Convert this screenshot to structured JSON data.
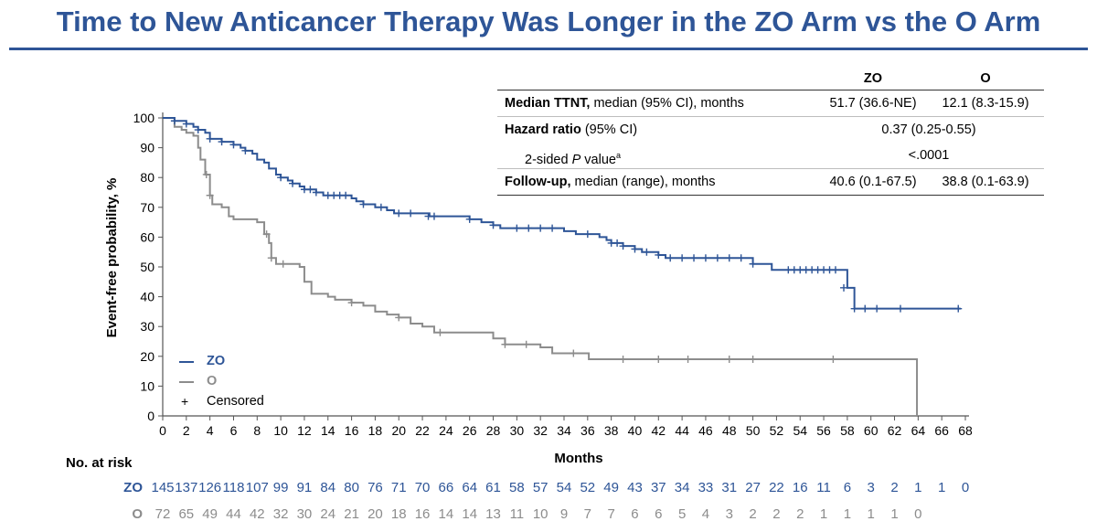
{
  "title": "Time to New Anticancer Therapy Was Longer in the ZO Arm vs the O Arm",
  "colors": {
    "zo": "#2e5597",
    "o": "#8c8c8c",
    "title": "#2e5597"
  },
  "table": {
    "col_zo": "ZO",
    "col_o": "O",
    "rows": [
      {
        "bold": "Median TTNT,",
        "rest": " median (95% CI), months",
        "zo": "51.7 (36.6-NE)",
        "o": "12.1 (8.3-15.9)"
      },
      {
        "bold": "Hazard ratio",
        "rest": " (95% CI)",
        "value": "0.37 (0.25-0.55)"
      },
      {
        "pre": "2-sided ",
        "italic": "P",
        "post": " value",
        "sup": "a",
        "value": "<.0001"
      },
      {
        "bold": "Follow-up,",
        "rest": " median (range), months",
        "zo": "40.6 (0.1-67.5)",
        "o": "38.8 (0.1-63.9)"
      }
    ]
  },
  "legend": {
    "zo": "ZO",
    "o": "O",
    "censored": "Censored",
    "censored_symbol": "+"
  },
  "risk": {
    "title": "No. at risk",
    "zo_label": "ZO",
    "o_label": "O",
    "zo": [
      "145",
      "137",
      "126",
      "118",
      "107",
      "99",
      "91",
      "84",
      "80",
      "76",
      "71",
      "70",
      "66",
      "64",
      "61",
      "58",
      "57",
      "54",
      "52",
      "49",
      "43",
      "37",
      "34",
      "33",
      "31",
      "27",
      "22",
      "16",
      "11",
      "6",
      "3",
      "2",
      "1",
      "1",
      "0"
    ],
    "o": [
      "72",
      "65",
      "49",
      "44",
      "42",
      "32",
      "30",
      "24",
      "21",
      "20",
      "18",
      "16",
      "14",
      "14",
      "13",
      "11",
      "10",
      "9",
      "7",
      "7",
      "6",
      "6",
      "5",
      "4",
      "3",
      "2",
      "2",
      "2",
      "1",
      "1",
      "1",
      "1",
      "0"
    ]
  },
  "chart_data": {
    "type": "line",
    "title": "",
    "xlabel": "Months",
    "ylabel": "Event-free probability, %",
    "xlim": [
      0,
      68
    ],
    "ylim": [
      0,
      100
    ],
    "xticks": [
      "0",
      "2",
      "4",
      "6",
      "8",
      "10",
      "12",
      "14",
      "16",
      "18",
      "20",
      "22",
      "24",
      "26",
      "28",
      "30",
      "32",
      "34",
      "36",
      "38",
      "40",
      "42",
      "44",
      "46",
      "48",
      "50",
      "52",
      "54",
      "56",
      "58",
      "60",
      "62",
      "64",
      "66",
      "68"
    ],
    "yticks": [
      "0",
      "10",
      "20",
      "30",
      "40",
      "50",
      "60",
      "70",
      "80",
      "90",
      "100"
    ],
    "series": [
      {
        "name": "ZO",
        "step": [
          [
            0,
            100
          ],
          [
            1,
            99
          ],
          [
            2,
            98
          ],
          [
            2.6,
            97
          ],
          [
            3,
            96
          ],
          [
            3.6,
            95
          ],
          [
            4,
            93
          ],
          [
            5,
            92
          ],
          [
            6,
            91
          ],
          [
            6.6,
            90
          ],
          [
            7,
            89
          ],
          [
            7.6,
            88
          ],
          [
            8,
            86
          ],
          [
            8.6,
            85
          ],
          [
            9,
            83
          ],
          [
            9.6,
            81
          ],
          [
            10,
            80
          ],
          [
            10.6,
            79
          ],
          [
            11,
            78
          ],
          [
            11.6,
            77
          ],
          [
            12,
            76
          ],
          [
            13,
            75
          ],
          [
            13.6,
            74
          ],
          [
            16,
            73
          ],
          [
            16.4,
            72
          ],
          [
            17,
            71
          ],
          [
            18,
            70
          ],
          [
            19,
            69
          ],
          [
            19.6,
            68
          ],
          [
            22,
            68
          ],
          [
            22.6,
            67
          ],
          [
            25,
            67
          ],
          [
            26,
            66
          ],
          [
            27,
            65
          ],
          [
            28,
            64
          ],
          [
            28.6,
            63
          ],
          [
            30,
            63
          ],
          [
            34,
            62
          ],
          [
            35,
            61
          ],
          [
            37,
            60
          ],
          [
            37.6,
            59
          ],
          [
            38,
            58
          ],
          [
            39,
            57
          ],
          [
            40,
            56
          ],
          [
            40.6,
            55
          ],
          [
            42,
            54
          ],
          [
            42.6,
            53
          ],
          [
            50,
            51
          ],
          [
            51.6,
            49
          ],
          [
            57.6,
            49
          ],
          [
            58,
            43
          ],
          [
            58.6,
            36
          ],
          [
            67.6,
            36
          ]
        ],
        "censored": [
          [
            1,
            99
          ],
          [
            2,
            98
          ],
          [
            3,
            96
          ],
          [
            4,
            93
          ],
          [
            5,
            92
          ],
          [
            6,
            91
          ],
          [
            7,
            89
          ],
          [
            10,
            80
          ],
          [
            11,
            78
          ],
          [
            12,
            76
          ],
          [
            12.5,
            76
          ],
          [
            13,
            75
          ],
          [
            14,
            74
          ],
          [
            14.5,
            74
          ],
          [
            15,
            74
          ],
          [
            15.5,
            74
          ],
          [
            17,
            71
          ],
          [
            18.5,
            70
          ],
          [
            20,
            68
          ],
          [
            21,
            68
          ],
          [
            22.5,
            67
          ],
          [
            23,
            67
          ],
          [
            26,
            66
          ],
          [
            28,
            64
          ],
          [
            30,
            63
          ],
          [
            31,
            63
          ],
          [
            32,
            63
          ],
          [
            33,
            63
          ],
          [
            36,
            61
          ],
          [
            38,
            58
          ],
          [
            38.5,
            58
          ],
          [
            39,
            57
          ],
          [
            40,
            56
          ],
          [
            41,
            55
          ],
          [
            42,
            54
          ],
          [
            43,
            53
          ],
          [
            44,
            53
          ],
          [
            45,
            53
          ],
          [
            46,
            53
          ],
          [
            47,
            53
          ],
          [
            48,
            53
          ],
          [
            49,
            53
          ],
          [
            50,
            51
          ],
          [
            53,
            49
          ],
          [
            53.5,
            49
          ],
          [
            54,
            49
          ],
          [
            54.5,
            49
          ],
          [
            55,
            49
          ],
          [
            55.5,
            49
          ],
          [
            56,
            49
          ],
          [
            56.5,
            49
          ],
          [
            57,
            49
          ],
          [
            57.7,
            43
          ],
          [
            58.6,
            36
          ],
          [
            59.5,
            36
          ],
          [
            60.5,
            36
          ],
          [
            62.5,
            36
          ],
          [
            67.4,
            36
          ]
        ]
      },
      {
        "name": "O",
        "step": [
          [
            0,
            100
          ],
          [
            1,
            97
          ],
          [
            1.6,
            96
          ],
          [
            2,
            95
          ],
          [
            2.6,
            94
          ],
          [
            3,
            90
          ],
          [
            3.2,
            86
          ],
          [
            3.6,
            81
          ],
          [
            4,
            74
          ],
          [
            4.2,
            71
          ],
          [
            5,
            70
          ],
          [
            5.6,
            67
          ],
          [
            6,
            66
          ],
          [
            8,
            65
          ],
          [
            8.6,
            61
          ],
          [
            9,
            58
          ],
          [
            9.2,
            53
          ],
          [
            9.6,
            51
          ],
          [
            11,
            51
          ],
          [
            11.6,
            50
          ],
          [
            12,
            45
          ],
          [
            12.6,
            41
          ],
          [
            14,
            40
          ],
          [
            14.6,
            39
          ],
          [
            16,
            38
          ],
          [
            17,
            37
          ],
          [
            18,
            35
          ],
          [
            19,
            34
          ],
          [
            20,
            33
          ],
          [
            21,
            31
          ],
          [
            22,
            30
          ],
          [
            23,
            28
          ],
          [
            27,
            28
          ],
          [
            28,
            26
          ],
          [
            29,
            24
          ],
          [
            32,
            23
          ],
          [
            33,
            21
          ],
          [
            36,
            21
          ],
          [
            36.1,
            19
          ],
          [
            63.9,
            19
          ],
          [
            63.9,
            0
          ]
        ],
        "censored": [
          [
            3.7,
            81
          ],
          [
            4,
            74
          ],
          [
            8.8,
            61
          ],
          [
            9.2,
            53
          ],
          [
            10.2,
            51
          ],
          [
            16,
            38
          ],
          [
            20,
            33
          ],
          [
            23.5,
            28
          ],
          [
            29,
            24
          ],
          [
            30.8,
            24
          ],
          [
            34.8,
            21
          ],
          [
            39,
            19
          ],
          [
            42,
            19
          ],
          [
            44.5,
            19
          ],
          [
            48,
            19
          ],
          [
            50,
            19
          ],
          [
            56.8,
            19
          ]
        ]
      }
    ]
  }
}
